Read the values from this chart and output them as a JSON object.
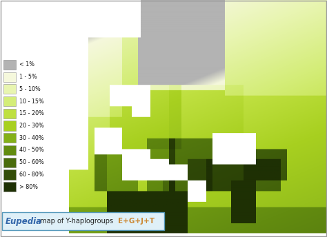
{
  "title_prefix": "Eupedia",
  "title_middle": " map of Y-haplogroups ",
  "title_haplogroups": "E+G+J+T",
  "legend_items": [
    {
      "label": "< 1%",
      "color": "#b3b3b3"
    },
    {
      "label": "1 - 5%",
      "color": "#f5f8dc"
    },
    {
      "label": "5 - 10%",
      "color": "#e8f5b0"
    },
    {
      "label": "10 - 15%",
      "color": "#d4ed78"
    },
    {
      "label": "15 - 20%",
      "color": "#bfe040"
    },
    {
      "label": "20 - 30%",
      "color": "#a8d020"
    },
    {
      "label": "30 - 40%",
      "color": "#84b018"
    },
    {
      "label": "40 - 50%",
      "color": "#638c10"
    },
    {
      "label": "50 - 60%",
      "color": "#4a6c0c"
    },
    {
      "label": "60 - 80%",
      "color": "#334d08"
    },
    {
      "label": "> 80%",
      "color": "#1e3004"
    }
  ],
  "ocean_color": "#ffffff",
  "bg_color": "#ffffff",
  "title_box_color": "#dff0f8",
  "title_box_border": "#5599bb",
  "eupedia_color": "#3366aa",
  "haplo_color": "#cc8833",
  "fig_width": 4.74,
  "fig_height": 3.44,
  "dpi": 100
}
